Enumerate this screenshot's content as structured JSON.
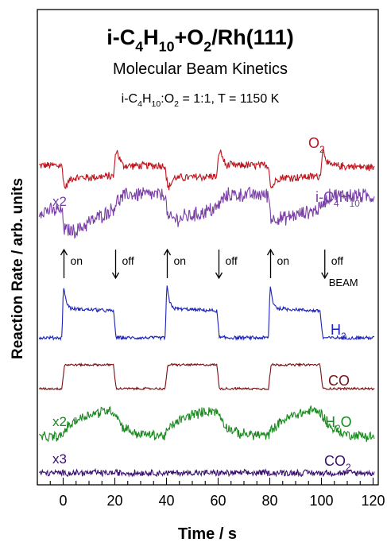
{
  "chart_data": {
    "type": "line",
    "title": {
      "main": [
        {
          "t": "i-C"
        },
        {
          "t": "4",
          "sub": true
        },
        {
          "t": "H"
        },
        {
          "t": "10",
          "sub": true
        },
        {
          "t": "+O"
        },
        {
          "t": "2",
          "sub": true
        },
        {
          "t": "/Rh(111)"
        }
      ],
      "subtitle": "Molecular Beam Kinetics",
      "condition": [
        {
          "t": "i-C"
        },
        {
          "t": "4",
          "sub": true
        },
        {
          "t": "H"
        },
        {
          "t": "10",
          "sub": true
        },
        {
          "t": ":O"
        },
        {
          "t": "2",
          "sub": true
        },
        {
          "t": " = 1:1, T = 1150 K"
        }
      ]
    },
    "xlabel": "Time / s",
    "ylabel": "Reaction Rate / arb. units",
    "xlim": [
      -10,
      122
    ],
    "xticks": [
      0,
      20,
      40,
      60,
      80,
      100,
      120
    ],
    "xtick_labels": [
      "0",
      "20",
      "40",
      "60",
      "80",
      "100",
      "120"
    ],
    "grid": false,
    "beam_events": [
      {
        "time": 0,
        "direction": "up",
        "label": "on"
      },
      {
        "time": 20,
        "direction": "down",
        "label": "off"
      },
      {
        "time": 40,
        "direction": "up",
        "label": "on"
      },
      {
        "time": 60,
        "direction": "down",
        "label": "off"
      },
      {
        "time": 80,
        "direction": "up",
        "label": "on"
      },
      {
        "time": 101,
        "direction": "down",
        "label": "off"
      }
    ],
    "beam_label": "BEAM",
    "series": [
      {
        "name": [
          {
            "t": "O"
          },
          {
            "t": "2",
            "sub": true
          }
        ],
        "scale": "",
        "color": "#c0141e",
        "x": [
          -10,
          -0.5,
          0.5,
          3,
          19.5,
          20.5,
          23,
          39.5,
          40.5,
          43,
          59.5,
          60.5,
          63,
          79.5,
          80.5,
          83,
          99.5,
          100.5,
          103,
          120
        ],
        "y": [
          0.55,
          0.55,
          -0.1,
          0.2,
          0.25,
          1.0,
          0.55,
          0.55,
          -0.1,
          0.2,
          0.25,
          1.0,
          0.55,
          0.55,
          -0.1,
          0.2,
          0.25,
          1.0,
          0.55,
          0.5
        ],
        "noise": 0.12
      },
      {
        "name": [
          {
            "t": "i-C"
          },
          {
            "t": "4",
            "sub": true
          },
          {
            "t": "H"
          },
          {
            "t": "10",
            "sub": true
          }
        ],
        "scale": "x2",
        "color": "#7b3fa8",
        "x": [
          -10,
          -0.5,
          0.5,
          5,
          19.5,
          20.5,
          24,
          39.5,
          40.5,
          45,
          59.5,
          60.5,
          64,
          79.5,
          80.5,
          85,
          99.5,
          100.5,
          104,
          120
        ],
        "y": [
          0.5,
          0.5,
          0.0,
          0.0,
          0.55,
          0.7,
          0.9,
          0.9,
          0.3,
          0.3,
          0.55,
          0.7,
          0.9,
          0.9,
          0.3,
          0.3,
          0.55,
          0.7,
          0.9,
          0.85
        ],
        "noise": 0.2
      },
      {
        "name": [
          {
            "t": "H"
          },
          {
            "t": "2",
            "sub": true
          }
        ],
        "scale": "",
        "color": "#1c22b8",
        "x": [
          -10,
          -0.5,
          0.1,
          1.2,
          3,
          19.5,
          20.5,
          39.5,
          40.1,
          41.2,
          43,
          59.5,
          60.5,
          79.5,
          80.1,
          81.2,
          83,
          99.5,
          100.5,
          120
        ],
        "y": [
          0.0,
          0.0,
          1.4,
          0.95,
          0.78,
          0.72,
          0.0,
          0.0,
          1.4,
          0.95,
          0.78,
          0.72,
          0.0,
          0.0,
          1.4,
          0.95,
          0.78,
          0.72,
          0.0,
          0.0
        ],
        "noise": 0.05
      },
      {
        "name": [
          {
            "t": "CO"
          }
        ],
        "scale": "",
        "color": "#7a0e12",
        "x": [
          -10,
          -0.5,
          0.5,
          19.5,
          20.5,
          39.5,
          40.5,
          59.5,
          60.5,
          79.5,
          80.5,
          99.5,
          100.5,
          120
        ],
        "y": [
          0.0,
          0.0,
          1.0,
          1.0,
          0.0,
          0.0,
          1.0,
          1.0,
          0.0,
          0.0,
          1.0,
          1.0,
          0.0,
          0.0
        ],
        "noise": 0.05
      },
      {
        "name": [
          {
            "t": "H"
          },
          {
            "t": "2",
            "sub": true
          },
          {
            "t": "O"
          }
        ],
        "scale": "x2",
        "color": "#198a1e",
        "x": [
          -10,
          -0.5,
          1,
          5,
          10,
          18,
          20.5,
          23,
          28,
          39.5,
          41,
          45,
          50,
          58,
          60.5,
          63,
          68,
          79.5,
          81,
          85,
          90,
          98,
          100.5,
          103,
          108,
          120
        ],
        "y": [
          0.0,
          0.0,
          0.3,
          0.55,
          0.75,
          0.9,
          0.75,
          0.35,
          0.12,
          0.05,
          0.3,
          0.55,
          0.75,
          0.9,
          0.75,
          0.35,
          0.12,
          0.05,
          0.3,
          0.55,
          0.75,
          0.9,
          0.75,
          0.35,
          0.12,
          0.0
        ],
        "noise": 0.18
      },
      {
        "name": [
          {
            "t": "CO"
          },
          {
            "t": "2",
            "sub": true
          }
        ],
        "scale": "x3",
        "color": "#3a0f6e",
        "x": [
          -10,
          120
        ],
        "y": [
          0.0,
          0.0
        ],
        "noise": 0.35
      }
    ]
  }
}
